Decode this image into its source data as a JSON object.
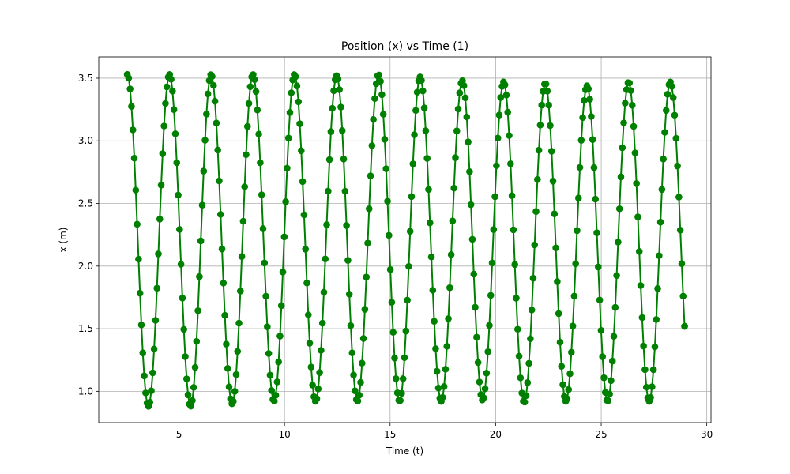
{
  "chart_data": {
    "type": "line",
    "title": "Position (x) vs Time (1)",
    "xlabel": "Time (t)",
    "ylabel": "x (m)",
    "xlim": [
      1.2,
      30.2
    ],
    "ylim": [
      0.75,
      3.67
    ],
    "x_ticks": [
      5,
      10,
      15,
      20,
      25,
      30
    ],
    "y_ticks": [
      1.0,
      1.5,
      2.0,
      2.5,
      3.0,
      3.5
    ],
    "x_tick_labels": [
      "5",
      "10",
      "15",
      "20",
      "25",
      "30"
    ],
    "y_tick_labels": [
      "1.0",
      "1.5",
      "2.0",
      "2.5",
      "3.0",
      "3.5"
    ],
    "grid": true,
    "legend": "none",
    "series": [
      {
        "color": "#008000",
        "marker": "circle",
        "t_start": 2.55,
        "t_end": 28.95,
        "sample_step": 0.067,
        "start_value": 3.53,
        "end_value": 1.52,
        "maxima": [
          [
            2.55,
            3.53
          ],
          [
            4.55,
            3.53
          ],
          [
            6.52,
            3.53
          ],
          [
            8.5,
            3.53
          ],
          [
            10.47,
            3.53
          ],
          [
            12.47,
            3.52
          ],
          [
            14.45,
            3.53
          ],
          [
            16.42,
            3.51
          ],
          [
            18.42,
            3.48
          ],
          [
            20.38,
            3.47
          ],
          [
            22.35,
            3.46
          ],
          [
            24.33,
            3.44
          ],
          [
            26.3,
            3.47
          ],
          [
            28.27,
            3.47
          ]
        ],
        "minima": [
          [
            3.55,
            0.88
          ],
          [
            5.55,
            0.88
          ],
          [
            7.52,
            0.9
          ],
          [
            9.5,
            0.92
          ],
          [
            11.47,
            0.92
          ],
          [
            13.45,
            0.92
          ],
          [
            15.45,
            0.92
          ],
          [
            17.42,
            0.92
          ],
          [
            19.38,
            0.93
          ],
          [
            21.35,
            0.91
          ],
          [
            23.33,
            0.92
          ],
          [
            25.3,
            0.92
          ],
          [
            27.27,
            0.92
          ]
        ]
      }
    ]
  }
}
